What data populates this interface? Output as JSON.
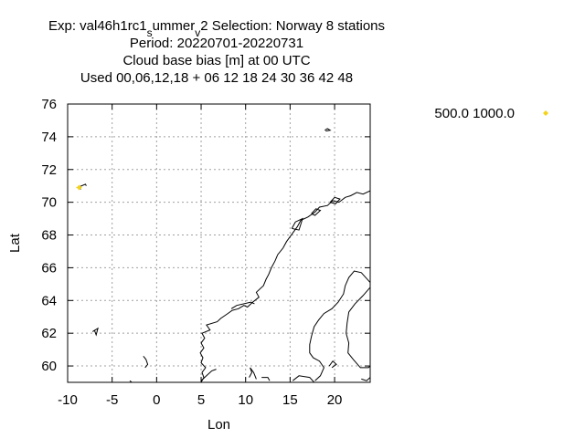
{
  "chart_data": {
    "type": "scatter",
    "title_lines": [
      {
        "parts": [
          "Exp: val46h1rc1",
          "s",
          "ummer",
          "v",
          "2   Selection: Norway      8 stations"
        ]
      },
      {
        "text": "Period: 20220701-20220731"
      },
      {
        "text": "Cloud base bias [m] at  00 UTC"
      },
      {
        "text": "Used  00,06,12,18  + 06 12 18 24 30 36 42 48"
      }
    ],
    "xlabel": "Lon",
    "ylabel": "Lat",
    "xlim": [
      -10,
      24
    ],
    "ylim": [
      59,
      76
    ],
    "xticks": [
      -10,
      -5,
      0,
      5,
      10,
      15,
      20
    ],
    "yticks": [
      60,
      62,
      64,
      66,
      68,
      70,
      72,
      74,
      76
    ],
    "grid": true,
    "legend": {
      "placement": "right",
      "entries": [
        {
          "label": "500.0 1000.0",
          "color": "#f5d31a",
          "marker": "diamond"
        }
      ]
    },
    "series": [
      {
        "label_ref": 0,
        "color": "#f5d31a",
        "points": [
          {
            "x": -8.7,
            "y": 70.9
          }
        ]
      }
    ],
    "coastlines": [
      [
        [
          -8.5,
          70.8
        ],
        [
          -8.9,
          70.9
        ],
        [
          -8.0,
          71.1
        ],
        [
          -7.9,
          71.0
        ]
      ],
      [
        [
          18.9,
          74.4
        ],
        [
          19.2,
          74.5
        ],
        [
          19.5,
          74.4
        ],
        [
          19.0,
          74.35
        ]
      ],
      [
        [
          -7.2,
          62.1
        ],
        [
          -6.6,
          62.3
        ],
        [
          -6.8,
          61.9
        ],
        [
          -7.0,
          62.2
        ]
      ],
      [
        [
          -1.5,
          60.6
        ],
        [
          -1.2,
          60.4
        ],
        [
          -1.0,
          60.1
        ],
        [
          -1.3,
          59.9
        ]
      ],
      [
        [
          -3.0,
          59.1
        ],
        [
          -2.8,
          59.0
        ]
      ],
      [
        [
          5.0,
          59.0
        ],
        [
          5.3,
          59.3
        ],
        [
          5.1,
          59.6
        ],
        [
          5.5,
          59.9
        ],
        [
          5.0,
          60.2
        ],
        [
          5.2,
          60.5
        ],
        [
          4.9,
          60.8
        ],
        [
          5.3,
          61.1
        ],
        [
          5.0,
          61.4
        ],
        [
          5.4,
          61.7
        ],
        [
          5.1,
          62.0
        ],
        [
          6.0,
          62.2
        ],
        [
          5.6,
          62.5
        ],
        [
          6.8,
          62.7
        ],
        [
          7.2,
          62.9
        ],
        [
          8.0,
          63.2
        ],
        [
          8.5,
          63.4
        ],
        [
          9.2,
          63.5
        ],
        [
          9.8,
          63.7
        ],
        [
          10.2,
          63.6
        ],
        [
          10.8,
          63.9
        ],
        [
          11.5,
          64.2
        ],
        [
          11.2,
          64.5
        ],
        [
          12.0,
          64.9
        ],
        [
          12.3,
          65.3
        ],
        [
          12.6,
          65.6
        ],
        [
          12.9,
          66.0
        ],
        [
          13.3,
          66.4
        ],
        [
          13.6,
          66.8
        ],
        [
          14.2,
          67.2
        ],
        [
          14.6,
          67.6
        ],
        [
          15.0,
          67.9
        ],
        [
          15.4,
          68.2
        ],
        [
          15.8,
          68.5
        ],
        [
          16.2,
          68.9
        ],
        [
          17.0,
          69.1
        ],
        [
          17.8,
          69.4
        ],
        [
          18.3,
          69.7
        ],
        [
          19.2,
          69.8
        ],
        [
          19.8,
          70.1
        ],
        [
          20.5,
          70.0
        ],
        [
          21.2,
          70.3
        ],
        [
          21.8,
          70.4
        ],
        [
          22.5,
          70.6
        ],
        [
          23.2,
          70.5
        ],
        [
          24.0,
          70.7
        ]
      ],
      [
        [
          15.2,
          68.4
        ],
        [
          15.6,
          68.8
        ],
        [
          16.4,
          69.0
        ],
        [
          16.0,
          68.3
        ],
        [
          15.2,
          68.4
        ]
      ],
      [
        [
          17.4,
          69.3
        ],
        [
          17.9,
          69.6
        ],
        [
          18.4,
          69.5
        ],
        [
          17.8,
          69.2
        ],
        [
          17.4,
          69.3
        ]
      ],
      [
        [
          19.5,
          70.0
        ],
        [
          20.0,
          70.3
        ],
        [
          20.6,
          70.2
        ],
        [
          20.1,
          69.9
        ],
        [
          19.5,
          70.0
        ]
      ],
      [
        [
          8.4,
          63.5
        ],
        [
          9.0,
          63.7
        ],
        [
          10.6,
          63.9
        ],
        [
          11.0,
          63.8
        ]
      ],
      [
        [
          5.0,
          59.1
        ],
        [
          5.6,
          59.4
        ],
        [
          6.2,
          59.7
        ],
        [
          6.7,
          59.8
        ]
      ],
      [
        [
          10.4,
          59.3
        ],
        [
          10.7,
          59.6
        ],
        [
          10.5,
          59.9
        ],
        [
          10.9,
          59.6
        ],
        [
          11.2,
          59.2
        ]
      ],
      [
        [
          11.8,
          59.3
        ],
        [
          12.5,
          59.3
        ],
        [
          12.7,
          59.1
        ]
      ],
      [
        [
          15.3,
          59.1
        ],
        [
          16.0,
          59.4
        ],
        [
          17.2,
          59.3
        ],
        [
          17.7,
          59.0
        ]
      ],
      [
        [
          24.0,
          65.1
        ],
        [
          23.0,
          65.7
        ],
        [
          22.2,
          65.8
        ],
        [
          21.6,
          65.4
        ],
        [
          21.2,
          64.9
        ],
        [
          21.0,
          64.4
        ],
        [
          20.4,
          63.9
        ],
        [
          19.7,
          63.5
        ],
        [
          18.8,
          63.2
        ],
        [
          18.2,
          62.8
        ],
        [
          17.7,
          62.4
        ],
        [
          17.4,
          61.8
        ],
        [
          17.2,
          61.3
        ],
        [
          17.2,
          60.8
        ],
        [
          17.6,
          60.5
        ],
        [
          18.3,
          60.3
        ],
        [
          18.8,
          59.9
        ],
        [
          18.4,
          59.4
        ],
        [
          17.8,
          59.1
        ]
      ],
      [
        [
          24.0,
          64.8
        ],
        [
          23.2,
          64.3
        ],
        [
          22.3,
          63.8
        ],
        [
          21.6,
          63.3
        ],
        [
          21.4,
          62.6
        ],
        [
          21.3,
          62.0
        ],
        [
          21.6,
          61.4
        ],
        [
          21.5,
          60.8
        ],
        [
          22.1,
          60.4
        ],
        [
          22.9,
          59.9
        ],
        [
          23.8,
          59.9
        ],
        [
          24.0,
          60.0
        ]
      ],
      [
        [
          19.4,
          60.0
        ],
        [
          19.8,
          60.3
        ],
        [
          20.2,
          60.1
        ],
        [
          19.7,
          59.9
        ]
      ],
      [
        [
          18.2,
          57.3
        ],
        [
          18.6,
          57.9
        ]
      ],
      [
        [
          23.0,
          59.2
        ],
        [
          23.6,
          59.1
        ],
        [
          24.0,
          59.3
        ]
      ]
    ]
  }
}
